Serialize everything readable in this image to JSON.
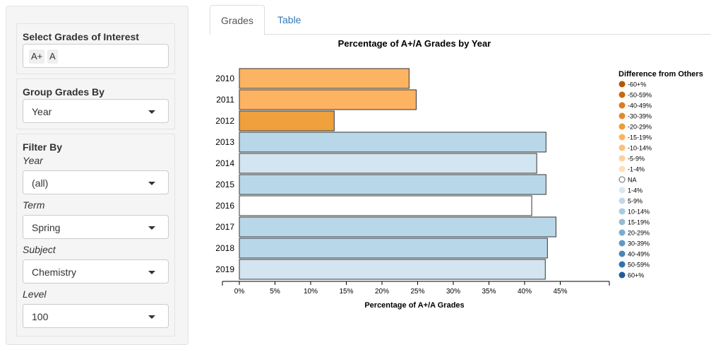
{
  "sidebar": {
    "grades_label": "Select Grades of Interest",
    "grade_chips": [
      "A+",
      "A"
    ],
    "group_label": "Group Grades By",
    "group_value": "Year",
    "filter_label": "Filter By",
    "filters": [
      {
        "label": "Year",
        "value": "(all)"
      },
      {
        "label": "Term",
        "value": "Spring"
      },
      {
        "label": "Subject",
        "value": "Chemistry"
      },
      {
        "label": "Level",
        "value": "100"
      }
    ]
  },
  "tabs": [
    {
      "label": "Grades",
      "active": true
    },
    {
      "label": "Table",
      "active": false
    }
  ],
  "chart_data": {
    "type": "bar",
    "orientation": "horizontal",
    "title": "Percentage of A+/A Grades by Year",
    "xlabel": "Percentage of A+/A Grades",
    "ylabel": "",
    "categories": [
      "2010",
      "2011",
      "2012",
      "2013",
      "2014",
      "2015",
      "2016",
      "2017",
      "2018",
      "2019"
    ],
    "values": [
      23.8,
      24.8,
      13.3,
      43.0,
      41.7,
      43.0,
      41.0,
      44.4,
      43.2,
      42.9
    ],
    "bar_colors": [
      "#fdb462",
      "#fdb462",
      "#f0a03c",
      "#b8d8ea",
      "#d2e5f0",
      "#b8d8ea",
      "#ffffff",
      "#b8d8ea",
      "#b8d8ea",
      "#d2e5f0"
    ],
    "xlim": [
      0,
      46
    ],
    "xticks": [
      0,
      5,
      10,
      15,
      20,
      25,
      30,
      35,
      40,
      45
    ],
    "xtick_labels": [
      "0%",
      "5%",
      "10%",
      "15%",
      "20%",
      "25%",
      "30%",
      "35%",
      "40%",
      "45%"
    ],
    "grid": false,
    "legend": {
      "title": "Difference from Others",
      "position": "right",
      "entries": [
        {
          "label": "-60+%",
          "color": "#b35806"
        },
        {
          "label": "-50-59%",
          "color": "#c96a12"
        },
        {
          "label": "-40-49%",
          "color": "#d97d1e"
        },
        {
          "label": "-30-39%",
          "color": "#e08c2c"
        },
        {
          "label": "-20-29%",
          "color": "#eb9c3a"
        },
        {
          "label": "-15-19%",
          "color": "#fdb462"
        },
        {
          "label": "-10-14%",
          "color": "#fdc07a"
        },
        {
          "label": "-5-9%",
          "color": "#fdd09c"
        },
        {
          "label": "-1-4%",
          "color": "#fee0b6"
        },
        {
          "label": "NA",
          "color": "#ffffff"
        },
        {
          "label": "1-4%",
          "color": "#d8e8f2"
        },
        {
          "label": "5-9%",
          "color": "#c0d9ea"
        },
        {
          "label": "10-14%",
          "color": "#a8cbe2"
        },
        {
          "label": "15-19%",
          "color": "#92bdda"
        },
        {
          "label": "20-29%",
          "color": "#7aadd0"
        },
        {
          "label": "30-39%",
          "color": "#5f9ac5"
        },
        {
          "label": "40-49%",
          "color": "#4787bb"
        },
        {
          "label": "50-59%",
          "color": "#3172af"
        },
        {
          "label": "60+%",
          "color": "#1f5c9e"
        }
      ]
    }
  }
}
